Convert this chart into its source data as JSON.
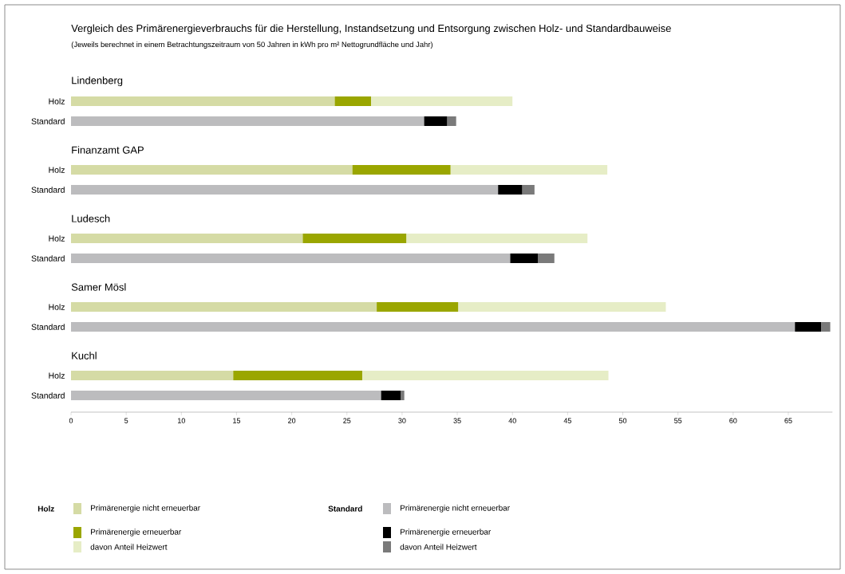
{
  "chart_data": {
    "type": "bar",
    "orientation": "horizontal",
    "stacked": true,
    "title": "Vergleich des Primärenergieverbrauchs für die Herstellung, Instandsetzung und Entsorgung zwischen Holz- und Standardbauweise",
    "subtitle": "(Jeweils berechnet in einem Betrachtungszeitraum von 50 Jahren in kWh pro m² Nettogrundfläche und Jahr)",
    "annotations": [
      "Lindenberg",
      "Finanzamt GAP",
      "Ludesch",
      "Samer Mösl",
      "Kuchl"
    ],
    "categories": [
      "Holz",
      "Standard",
      "Holz",
      "Standard",
      "Holz",
      "Standard",
      "Holz",
      "Standard",
      "Holz",
      "Standard"
    ],
    "series": [
      {
        "name": "Primärenergie nicht erneuerbar",
        "color": "#d5dba5",
        "values": [
          23.9,
          null,
          25.5,
          null,
          21.0,
          null,
          27.7,
          null,
          14.7,
          null
        ]
      },
      {
        "name": "Primärenergie erneuerbar",
        "color": "#9aa600",
        "values": [
          3.3,
          null,
          8.9,
          null,
          9.4,
          null,
          7.4,
          null,
          11.7,
          null
        ]
      },
      {
        "name": "davon Anteil Heizwert",
        "color": "#e6edc6",
        "values": [
          12.8,
          null,
          14.2,
          null,
          16.4,
          null,
          18.8,
          null,
          22.3,
          null
        ]
      },
      {
        "name": "Primärenergie nicht erneuerbar",
        "color": "#bcbcbe",
        "values": [
          null,
          32.0,
          null,
          38.7,
          null,
          39.8,
          null,
          65.6,
          null,
          28.1
        ]
      },
      {
        "name": "Primärenergie erneuerbar",
        "color": "#000000",
        "values": [
          null,
          2.1,
          null,
          2.2,
          null,
          2.5,
          null,
          2.4,
          null,
          1.8
        ]
      },
      {
        "name": "davon Anteil Heizwert",
        "color": "#7a7a7a",
        "values": [
          null,
          0.8,
          null,
          1.1,
          null,
          1.5,
          null,
          0.8,
          null,
          0.3
        ]
      }
    ],
    "xlim": [
      0,
      69
    ],
    "xticks": [
      0,
      5,
      10,
      15,
      20,
      25,
      30,
      35,
      40,
      45,
      50,
      55,
      60,
      65
    ],
    "legend": "bottom"
  }
}
